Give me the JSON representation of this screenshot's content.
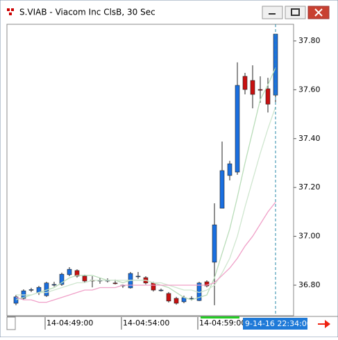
{
  "window_title": "S.VIAB - Viacom Inc ClsB, 30 Sec",
  "chart_data": {
    "type": "candlestick",
    "categories": [
      null,
      null,
      null,
      null,
      "14-04:49:00",
      null,
      null,
      null,
      null,
      null,
      null,
      null,
      null,
      null,
      "14-04:54:00",
      null,
      null,
      null,
      null,
      null,
      null,
      null,
      null,
      null,
      "14-04:59:00",
      null,
      null,
      null,
      null,
      null,
      null,
      null,
      null,
      null,
      null
    ],
    "open": [
      36.726,
      36.746,
      36.78,
      36.769,
      36.757,
      36.8,
      36.803,
      36.843,
      36.86,
      36.837,
      36.82,
      36.82,
      36.817,
      36.809,
      36.797,
      36.789,
      36.837,
      36.831,
      36.809,
      36.78,
      36.766,
      36.746,
      36.732,
      36.746,
      36.737,
      36.814,
      36.894,
      37.115,
      37.249,
      37.263,
      37.655,
      37.638,
      37.601,
      37.604,
      37.578
    ],
    "high": [
      36.76,
      36.783,
      36.789,
      36.797,
      36.814,
      36.814,
      36.851,
      36.874,
      36.865,
      36.843,
      36.837,
      36.831,
      36.828,
      36.823,
      36.803,
      36.854,
      36.854,
      36.837,
      36.814,
      36.786,
      36.772,
      36.752,
      36.757,
      36.755,
      36.814,
      36.82,
      37.135,
      37.388,
      37.309,
      37.712,
      37.669,
      37.7,
      37.655,
      37.649,
      37.828
    ],
    "low": [
      36.718,
      36.74,
      36.772,
      36.76,
      36.752,
      36.794,
      36.797,
      36.837,
      36.831,
      36.809,
      36.791,
      36.806,
      36.811,
      36.803,
      36.789,
      36.786,
      36.826,
      36.803,
      36.774,
      36.774,
      36.729,
      36.72,
      36.726,
      36.737,
      36.735,
      36.791,
      36.718,
      37.115,
      37.229,
      37.252,
      37.581,
      37.524,
      37.547,
      37.507,
      37.541
    ],
    "close": [
      36.752,
      36.777,
      36.782,
      36.791,
      36.809,
      36.803,
      36.845,
      36.865,
      36.837,
      36.817,
      36.817,
      36.82,
      36.82,
      36.806,
      36.8,
      36.848,
      36.837,
      36.809,
      36.78,
      36.78,
      36.735,
      36.726,
      36.749,
      36.746,
      36.809,
      36.797,
      37.047,
      37.269,
      37.297,
      37.618,
      37.601,
      37.581,
      37.598,
      37.541,
      37.828
    ],
    "up_color": "#1a6fe0",
    "down_color": "#c81010",
    "lines": [
      {
        "color": "#b8dcb8",
        "values": [
          36.74,
          36.75,
          36.76,
          36.77,
          36.78,
          36.79,
          36.81,
          36.83,
          36.84,
          36.84,
          36.84,
          36.83,
          36.82,
          36.82,
          36.81,
          36.82,
          36.82,
          36.82,
          36.81,
          36.8,
          36.79,
          36.77,
          36.75,
          36.74,
          36.75,
          36.76,
          36.83,
          36.93,
          37.03,
          37.16,
          37.3,
          37.43,
          37.56,
          37.62,
          37.69
        ]
      },
      {
        "color": "#cfe6cf",
        "values": [
          36.76,
          36.76,
          36.76,
          36.77,
          36.77,
          36.78,
          36.79,
          36.8,
          36.81,
          36.81,
          36.82,
          36.82,
          36.82,
          36.82,
          36.82,
          36.82,
          36.82,
          36.82,
          36.81,
          36.81,
          36.8,
          36.79,
          36.78,
          36.78,
          36.77,
          36.78,
          36.8,
          36.85,
          36.91,
          37.0,
          37.12,
          37.23,
          37.34,
          37.44,
          37.53
        ]
      },
      {
        "color": "#f0a0c8",
        "values": [
          36.75,
          36.74,
          36.74,
          36.73,
          36.73,
          36.74,
          36.75,
          36.76,
          36.77,
          36.78,
          36.78,
          36.79,
          36.79,
          36.79,
          36.8,
          36.8,
          36.8,
          36.8,
          36.8,
          36.8,
          36.8,
          36.8,
          36.8,
          36.8,
          36.8,
          36.8,
          36.81,
          36.84,
          36.87,
          36.91,
          36.96,
          37.0,
          37.05,
          37.1,
          37.14
        ]
      }
    ],
    "ylim": [
      36.675,
      37.868
    ],
    "yticks": [
      {
        "value": 36.8,
        "label": "36.80"
      },
      {
        "value": 37.0,
        "label": "37.00"
      },
      {
        "value": 37.2,
        "label": "37.20"
      },
      {
        "value": 37.4,
        "label": "37.40"
      },
      {
        "value": 37.6,
        "label": "37.60"
      },
      {
        "value": 37.8,
        "label": "37.80"
      }
    ],
    "cursor_label": "9-14-16 22:34:00"
  }
}
